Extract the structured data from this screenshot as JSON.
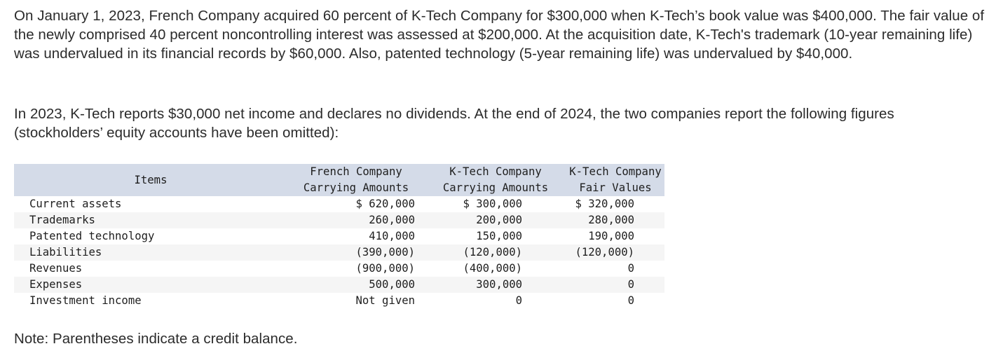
{
  "paragraphs": {
    "intro": "On January 1, 2023, French Company acquired 60 percent of K-Tech Company for $300,000 when K-Tech’s book value was $400,000. The fair value of the newly comprised 40 percent noncontrolling interest was assessed at $200,000. At the acquisition date, K-Tech's trademark (10-year remaining life) was undervalued in its financial records by $60,000. Also, patented technology (5-year remaining life) was undervalued by $40,000.",
    "context": "In 2023, K-Tech reports $30,000 net income and declares no dividends. At the end of 2024, the two companies report the following figures (stockholders’ equity accounts have been omitted):",
    "note": "Note: Parentheses indicate a credit balance."
  },
  "table": {
    "headers": {
      "items": "Items",
      "french_line1": "French Company",
      "french_line2": "Carrying Amounts",
      "ktech_line1": "K-Tech Company",
      "ktech_line2": "Carrying Amounts",
      "fair_line1": "K-Tech Company",
      "fair_line2": "Fair Values"
    },
    "rows": [
      {
        "label": "Current assets",
        "french": "$ 620,000",
        "ktech": "$ 300,000",
        "fair": "$ 320,000"
      },
      {
        "label": "Trademarks",
        "french": "260,000",
        "ktech": "200,000",
        "fair": "280,000"
      },
      {
        "label": "Patented technology",
        "french": "410,000",
        "ktech": "150,000",
        "fair": "190,000"
      },
      {
        "label": "Liabilities",
        "french": "(390,000)",
        "ktech": "(120,000)",
        "fair": "(120,000)"
      },
      {
        "label": "Revenues",
        "french": "(900,000)",
        "ktech": "(400,000)",
        "fair": "0"
      },
      {
        "label": "Expenses",
        "french": "500,000",
        "ktech": "300,000",
        "fair": "0"
      },
      {
        "label": "Investment income",
        "french": "Not given",
        "ktech": "0",
        "fair": "0"
      }
    ]
  }
}
